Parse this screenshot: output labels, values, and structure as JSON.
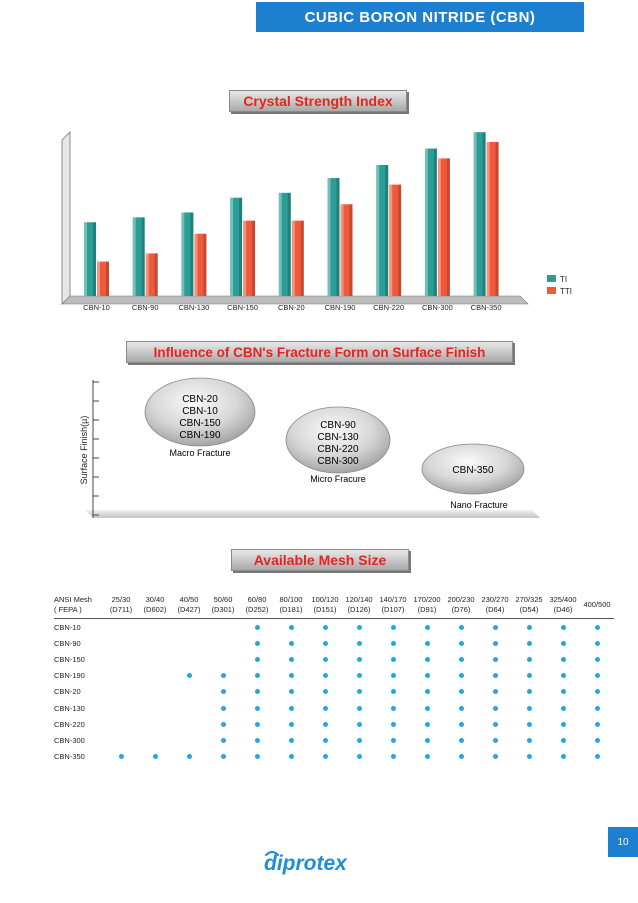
{
  "header": {
    "title": "CUBIC BORON NITRIDE (CBN)"
  },
  "crystal": {
    "title": "Crystal Strength Index",
    "chart_data": {
      "type": "bar",
      "categories": [
        "CBN-10",
        "CBN-90",
        "CBN-130",
        "CBN-150",
        "CBN-20",
        "CBN-190",
        "CBN-220",
        "CBN-300",
        "CBN-350"
      ],
      "series": [
        {
          "name": "TI",
          "values": [
            45,
            48,
            51,
            60,
            63,
            72,
            80,
            90,
            100
          ]
        },
        {
          "name": "TTI",
          "values": [
            21,
            26,
            38,
            46,
            46,
            56,
            68,
            84,
            94
          ]
        }
      ],
      "ylim": [
        0,
        105
      ],
      "grid": false,
      "legend": "right",
      "colors": {
        "TI": "#2a9d96",
        "TTI": "#f05a3c"
      }
    }
  },
  "fracture": {
    "title": "Influence of CBN's Fracture Form on Surface Finish",
    "ylabel": "Surface Finish(µ)",
    "groups": [
      {
        "grades": [
          "CBN-20",
          "CBN-10",
          "CBN-150",
          "CBN-190"
        ],
        "label": "Macro Fracture"
      },
      {
        "grades": [
          "CBN-90",
          "CBN-130",
          "CBN-220",
          "CBN-300"
        ],
        "label": "Micro Fracure"
      },
      {
        "grades": [
          "CBN-350"
        ],
        "label": "Nano Fracture"
      }
    ]
  },
  "mesh": {
    "title": "Available Mesh Size",
    "header_label": [
      "ANSI Mesh",
      "( FEPA )"
    ],
    "columns": [
      {
        "ansi": "25/30",
        "fepa": "(D711)"
      },
      {
        "ansi": "30/40",
        "fepa": "(D602)"
      },
      {
        "ansi": "40/50",
        "fepa": "(D427)"
      },
      {
        "ansi": "50/60",
        "fepa": "(D301)"
      },
      {
        "ansi": "60/80",
        "fepa": "(D252)"
      },
      {
        "ansi": "80/100",
        "fepa": "(D181)"
      },
      {
        "ansi": "100/120",
        "fepa": "(D151)"
      },
      {
        "ansi": "120/140",
        "fepa": "(D126)"
      },
      {
        "ansi": "140/170",
        "fepa": "(D107)"
      },
      {
        "ansi": "170/200",
        "fepa": "(D91)"
      },
      {
        "ansi": "200/230",
        "fepa": "(D76)"
      },
      {
        "ansi": "230/270",
        "fepa": "(D64)"
      },
      {
        "ansi": "270/325",
        "fepa": "(D54)"
      },
      {
        "ansi": "325/400",
        "fepa": "(D46)"
      },
      {
        "ansi": "400/500",
        "fepa": ""
      }
    ],
    "rows": [
      {
        "grade": "CBN-10",
        "available": [
          0,
          0,
          0,
          0,
          1,
          1,
          1,
          1,
          1,
          1,
          1,
          1,
          1,
          1,
          1
        ]
      },
      {
        "grade": "CBN-90",
        "available": [
          0,
          0,
          0,
          0,
          1,
          1,
          1,
          1,
          1,
          1,
          1,
          1,
          1,
          1,
          1
        ]
      },
      {
        "grade": "CBN-150",
        "available": [
          0,
          0,
          0,
          0,
          1,
          1,
          1,
          1,
          1,
          1,
          1,
          1,
          1,
          1,
          1
        ]
      },
      {
        "grade": "CBN-190",
        "available": [
          0,
          0,
          1,
          1,
          1,
          1,
          1,
          1,
          1,
          1,
          1,
          1,
          1,
          1,
          1
        ]
      },
      {
        "grade": "CBN-20",
        "available": [
          0,
          0,
          0,
          1,
          1,
          1,
          1,
          1,
          1,
          1,
          1,
          1,
          1,
          1,
          1
        ]
      },
      {
        "grade": "CBN-130",
        "available": [
          0,
          0,
          0,
          1,
          1,
          1,
          1,
          1,
          1,
          1,
          1,
          1,
          1,
          1,
          1
        ]
      },
      {
        "grade": "CBN-220",
        "available": [
          0,
          0,
          0,
          1,
          1,
          1,
          1,
          1,
          1,
          1,
          1,
          1,
          1,
          1,
          1
        ]
      },
      {
        "grade": "CBN-300",
        "available": [
          0,
          0,
          0,
          1,
          1,
          1,
          1,
          1,
          1,
          1,
          1,
          1,
          1,
          1,
          1
        ]
      },
      {
        "grade": "CBN-350",
        "available": [
          1,
          1,
          1,
          1,
          1,
          1,
          1,
          1,
          1,
          1,
          1,
          1,
          1,
          1,
          1
        ]
      }
    ],
    "dot_color": "#27a7e0"
  },
  "footer": {
    "page_number": "10",
    "logo": "diprotex",
    "logo_color": "#1d8fd8"
  }
}
